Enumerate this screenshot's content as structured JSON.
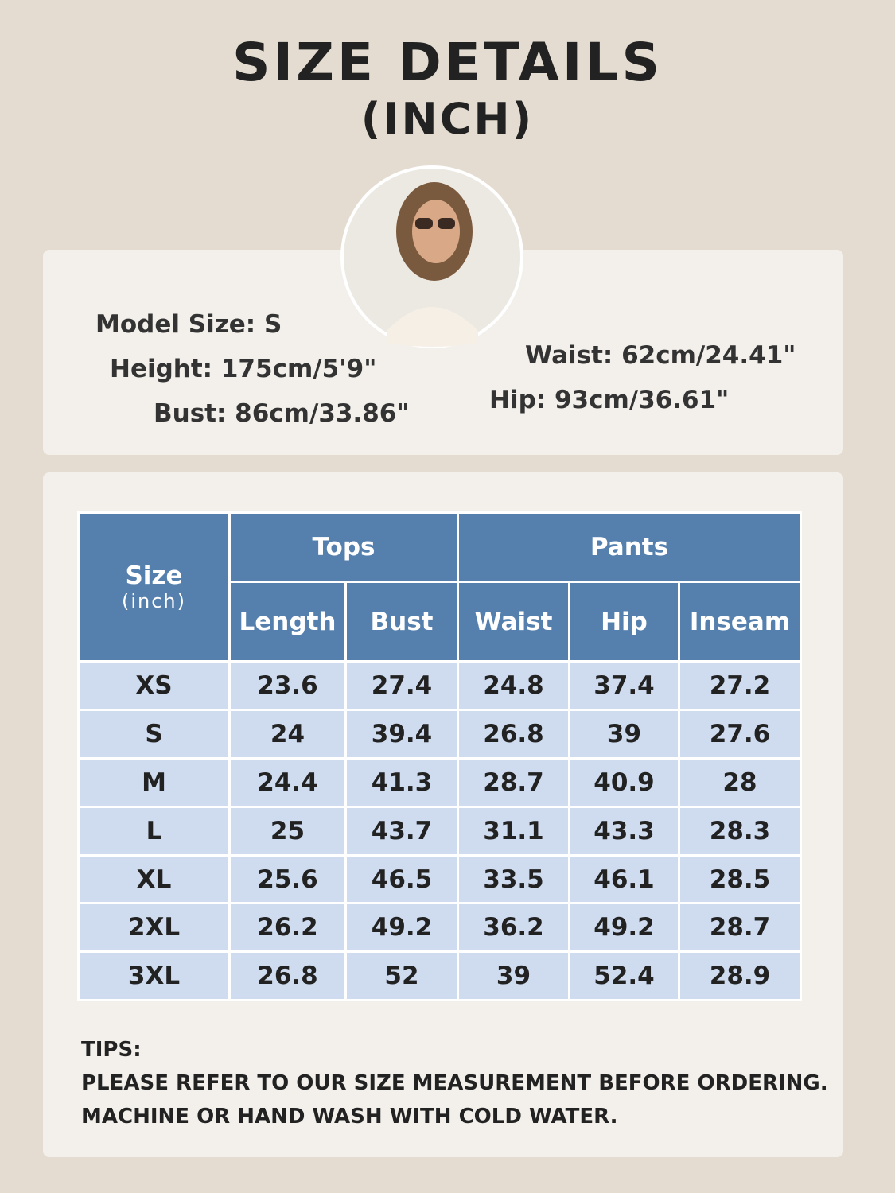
{
  "header": {
    "title": "SIZE DETAILS",
    "subtitle": "(INCH)"
  },
  "model": {
    "lines": [
      "Model Size: S",
      "Height: 175cm/5'9\"",
      "Bust: 86cm/33.86\"",
      "Waist: 62cm/24.41\"",
      "Hip: 93cm/36.61\""
    ]
  },
  "table": {
    "size_header": "Size",
    "size_unit": "(inch)",
    "groups": [
      {
        "label": "Tops",
        "columns": [
          "Length",
          "Bust"
        ]
      },
      {
        "label": "Pants",
        "columns": [
          "Waist",
          "Hip",
          "Inseam"
        ]
      }
    ],
    "rows": [
      [
        "XS",
        23.6,
        27.4,
        24.8,
        37.4,
        27.2
      ],
      [
        "S",
        24,
        39.4,
        26.8,
        39,
        27.6
      ],
      [
        "M",
        24.4,
        41.3,
        28.7,
        40.9,
        28
      ],
      [
        "L",
        25,
        43.7,
        31.1,
        43.3,
        28.3
      ],
      [
        "XL",
        25.6,
        46.5,
        33.5,
        46.1,
        28.5
      ],
      [
        "2XL",
        26.2,
        49.2,
        36.2,
        49.2,
        28.7
      ],
      [
        "3XL",
        26.8,
        52,
        39,
        52.4,
        28.9
      ]
    ]
  },
  "tips": {
    "label": "TIPS:",
    "lines": [
      "PLEASE REFER TO OUR SIZE MEASUREMENT BEFORE ORDERING.",
      "MACHINE OR HAND WASH WITH COLD WATER."
    ]
  }
}
